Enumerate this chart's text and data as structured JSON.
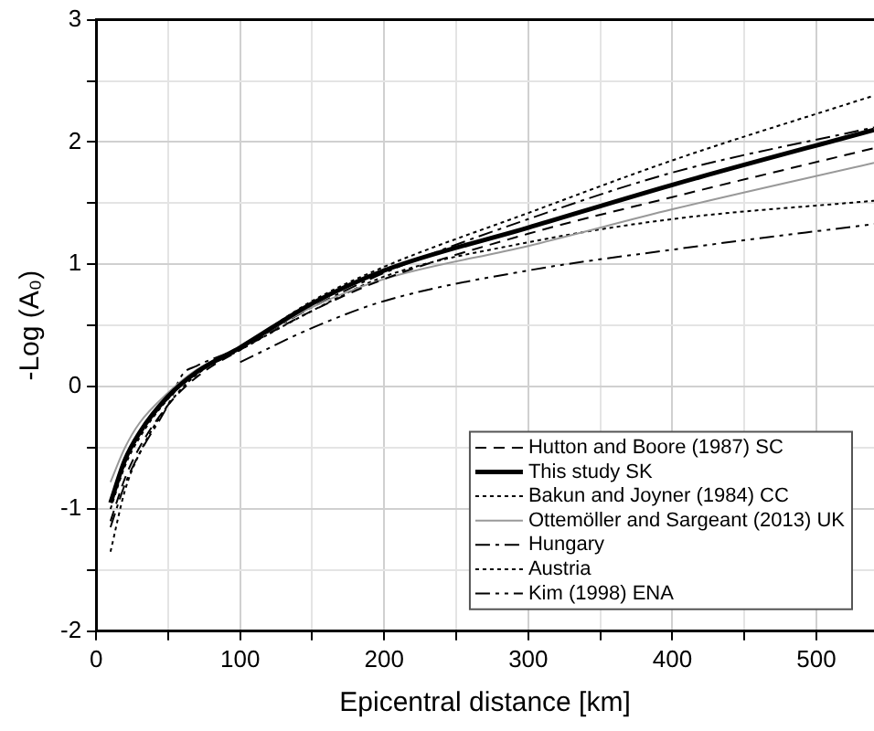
{
  "chart_data": {
    "type": "line",
    "xlabel": "Epicentral distance [km]",
    "ylabel": "-Log (A₀)",
    "xlim": [
      0,
      540
    ],
    "ylim": [
      -2,
      3
    ],
    "xticks": [
      0,
      {
        "value": 50,
        "label": null
      },
      100,
      {
        "value": 150,
        "label": null
      },
      200,
      {
        "value": 250,
        "label": null
      },
      300,
      {
        "value": 350,
        "label": null
      },
      400,
      {
        "value": 450,
        "label": null
      },
      500
    ],
    "yticks": [
      -2,
      {
        "value": -1.5,
        "label": null
      },
      -1,
      {
        "value": -0.5,
        "label": null
      },
      0,
      {
        "value": 0.5,
        "label": null
      },
      1,
      {
        "value": 1.5,
        "label": null
      },
      2,
      {
        "value": 2.5,
        "label": null
      },
      3
    ],
    "grid": true,
    "legend": "bottom right",
    "marker": "none",
    "series": [
      {
        "name": "Hutton and Boore (1987) SC",
        "color": "#000000",
        "line_style": "dashed",
        "x": [
          10,
          20,
          30,
          50,
          70,
          100,
          150,
          200,
          300,
          400,
          540
        ],
        "values": [
          -1.1,
          -0.75,
          -0.5,
          -0.15,
          0.08,
          0.3,
          0.62,
          0.88,
          1.25,
          1.55,
          1.95
        ]
      },
      {
        "name": "This study SK",
        "color": "#000000",
        "line_style": "solid",
        "x": [
          10,
          20,
          30,
          50,
          70,
          100,
          150,
          200,
          300,
          400,
          540
        ],
        "values": [
          -0.95,
          -0.6,
          -0.38,
          -0.08,
          0.12,
          0.32,
          0.68,
          0.95,
          1.3,
          1.65,
          2.1
        ]
      },
      {
        "name": "Bakun and Joyner (1984) CC",
        "color": "#000000",
        "line_style": "dotted",
        "x": [
          10,
          20,
          30,
          50,
          70,
          100,
          150,
          200,
          300,
          400,
          540
        ],
        "values": [
          -1.0,
          -0.65,
          -0.42,
          -0.1,
          0.12,
          0.32,
          0.7,
          0.98,
          1.42,
          1.85,
          2.38
        ]
      },
      {
        "name": "Ottemöller and Sargeant (2013) UK",
        "color": "#999999",
        "line_style": "solid",
        "x": [
          10,
          20,
          30,
          50,
          70,
          100,
          150,
          200,
          300,
          400,
          540
        ],
        "values": [
          -0.78,
          -0.5,
          -0.3,
          -0.05,
          0.14,
          0.32,
          0.65,
          0.88,
          1.15,
          1.45,
          1.83
        ]
      },
      {
        "name": "Hungary",
        "color": "#000000",
        "line_style": "dashdot",
        "x": [
          10,
          20,
          30,
          50,
          60,
          70,
          100,
          150,
          200,
          300,
          400,
          540
        ],
        "values": [
          -1.15,
          -0.8,
          -0.55,
          -0.15,
          0.1,
          0.17,
          0.32,
          0.65,
          0.93,
          1.37,
          1.75,
          2.12
        ]
      },
      {
        "name": "Austria",
        "color": "#000000",
        "line_style": "dotted",
        "x": [
          10,
          20,
          30,
          50,
          70,
          100,
          150,
          200,
          300,
          400,
          540
        ],
        "values": [
          -1.35,
          -0.85,
          -0.55,
          -0.15,
          0.1,
          0.3,
          0.62,
          0.9,
          1.18,
          1.37,
          1.52
        ]
      },
      {
        "name": "Kim (1998) ENA",
        "color": "#000000",
        "line_style": "dashdotdot",
        "x": [
          100,
          150,
          200,
          300,
          400,
          540
        ],
        "values": [
          0.2,
          0.48,
          0.7,
          0.95,
          1.12,
          1.33
        ]
      }
    ]
  }
}
